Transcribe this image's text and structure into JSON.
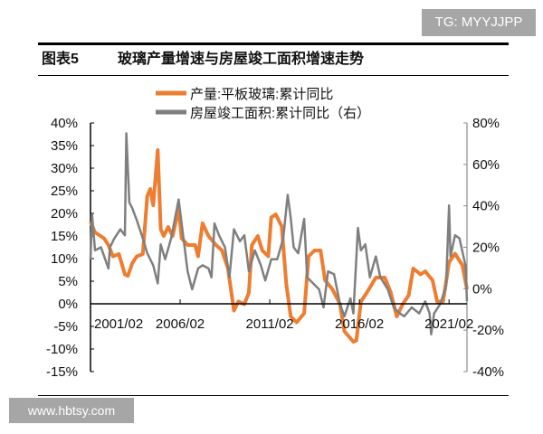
{
  "watermarks": {
    "top": "TG: MYYJJPP",
    "bottom": "www.hbtsy.com"
  },
  "figure": {
    "number": "图表5",
    "title": "玻璃产量增速与房屋竣工面积增速走势"
  },
  "chart_data": {
    "type": "line",
    "title": "玻璃产量增速与房屋竣工面积增速走势",
    "colors": {
      "glass": "#ed7d31",
      "completion": "#7f7f7f"
    },
    "x_ticks": [
      "2001/02",
      "2006/02",
      "2011/02",
      "2016/02",
      "2021/02"
    ],
    "x_range": [
      "2001/02",
      "2022/02"
    ],
    "y_left": {
      "ticks": [
        "40%",
        "35%",
        "30%",
        "25%",
        "20%",
        "15%",
        "10%",
        "5%",
        "0%",
        "-5%",
        "-10%",
        "-15%"
      ],
      "range": [
        -15,
        40
      ]
    },
    "y_right": {
      "ticks": [
        "80%",
        "60%",
        "40%",
        "20%",
        "0%",
        "-20%",
        "-40%"
      ],
      "range": [
        -40,
        80
      ]
    },
    "grid": false,
    "legend_position": "top",
    "series": [
      {
        "name": "产量:平板玻璃:累计同比",
        "axis": "left",
        "x": [
          "2001/02",
          "2001/05",
          "2001/11",
          "2002/02",
          "2002/05",
          "2002/09",
          "2003/01",
          "2003/03",
          "2003/06",
          "2003/09",
          "2004/01",
          "2004/04",
          "2004/06",
          "2004/08",
          "2004/11",
          "2005/01",
          "2005/03",
          "2005/06",
          "2005/09",
          "2006/01",
          "2006/03",
          "2006/07",
          "2006/12",
          "2007/02",
          "2007/05",
          "2007/09",
          "2008/02",
          "2008/06",
          "2008/10",
          "2009/02",
          "2009/05",
          "2009/09",
          "2009/12",
          "2010/02",
          "2010/06",
          "2010/09",
          "2011/01",
          "2011/03",
          "2011/06",
          "2011/10",
          "2012/01",
          "2012/04",
          "2012/08",
          "2013/01",
          "2013/04",
          "2013/08",
          "2013/12",
          "2014/03",
          "2014/08",
          "2015/01",
          "2015/04",
          "2015/10",
          "2015/12",
          "2016/03",
          "2016/07",
          "2017/01",
          "2017/07",
          "2017/11",
          "2018/03",
          "2018/07",
          "2018/11",
          "2019/02",
          "2019/07",
          "2019/10",
          "2020/03",
          "2020/06",
          "2020/10",
          "2021/02",
          "2021/06",
          "2021/11",
          "2022/02"
        ],
        "y": [
          18.1,
          15.8,
          14.5,
          13,
          10.5,
          11,
          6.5,
          6.2,
          9,
          10.5,
          11,
          23.8,
          25.4,
          21.8,
          34,
          16.5,
          15,
          17,
          15,
          21,
          14.5,
          13,
          13,
          10.5,
          17.8,
          15,
          13,
          11.8,
          7.8,
          -1.5,
          0.5,
          -0.1,
          2.5,
          13,
          15,
          11.8,
          10.5,
          19.1,
          19.8,
          17.1,
          4.5,
          -2.8,
          -4.1,
          -2.1,
          10.5,
          11.8,
          11.8,
          5.2,
          3.2,
          -0.1,
          -6.1,
          -8.4,
          -8.1,
          0.5,
          2.5,
          5.8,
          5.8,
          2.5,
          -2.8,
          -0.1,
          1.9,
          7.8,
          6.5,
          7.2,
          5.2,
          0.5,
          0.5,
          9.2,
          11.1,
          8.5,
          3.2
        ]
      },
      {
        "name": "房屋竣工面积:累计同比（右）",
        "axis": "right",
        "x": [
          "2001/02",
          "2001/03",
          "2001/05",
          "2001/09",
          "2002/02",
          "2002/03",
          "2002/06",
          "2002/10",
          "2003/01",
          "2003/02",
          "2003/04",
          "2003/06",
          "2003/09",
          "2004/01",
          "2004/04",
          "2004/08",
          "2004/11",
          "2005/01",
          "2005/04",
          "2005/08",
          "2006/01",
          "2006/03",
          "2006/07",
          "2006/10",
          "2007/02",
          "2007/05",
          "2007/09",
          "2007/11",
          "2008/01",
          "2008/04",
          "2008/08",
          "2008/11",
          "2009/02",
          "2009/06",
          "2009/09",
          "2009/12",
          "2010/04",
          "2010/08",
          "2010/11",
          "2011/03",
          "2011/07",
          "2011/11",
          "2012/02",
          "2012/04",
          "2012/06",
          "2012/09",
          "2013/01",
          "2013/03",
          "2013/07",
          "2013/11",
          "2014/02",
          "2014/05",
          "2014/09",
          "2015/01",
          "2015/04",
          "2015/08",
          "2015/10",
          "2016/01",
          "2016/03",
          "2016/06",
          "2016/09",
          "2017/01",
          "2017/04",
          "2017/09",
          "2018/01",
          "2018/05",
          "2018/08",
          "2019/01",
          "2019/06",
          "2019/10",
          "2020/01",
          "2020/02",
          "2020/04",
          "2020/08",
          "2020/12",
          "2021/02",
          "2021/03",
          "2021/06",
          "2021/09",
          "2022/01",
          "2022/02"
        ],
        "y": [
          14.2,
          35.9,
          18.5,
          20,
          9.8,
          20,
          24.3,
          28.7,
          25.8,
          75,
          41.7,
          38.8,
          33,
          24.3,
          17.1,
          11.3,
          2.6,
          21.4,
          14.2,
          24.3,
          43.1,
          31.5,
          8.4,
          -0.3,
          9.8,
          11.3,
          9.8,
          5.5,
          31.5,
          25.8,
          20,
          5.5,
          28.7,
          22.9,
          25.8,
          8.4,
          18.5,
          11.3,
          4,
          14.2,
          14.2,
          24.3,
          45.3,
          34.4,
          20,
          17.1,
          33.7,
          5.5,
          2.6,
          -0.3,
          -9,
          8.4,
          7,
          -7.5,
          -13.3,
          -4.6,
          -11.9,
          29.4,
          18.5,
          21.4,
          5.5,
          15.6,
          5.5,
          -0.3,
          -9,
          -11.9,
          -13.3,
          -9,
          -11.9,
          -6.1,
          -11.9,
          -22,
          -11.9,
          -7.5,
          1.2,
          40.2,
          15.6,
          25.8,
          24.3,
          11.3,
          -6.1
        ]
      }
    ]
  }
}
